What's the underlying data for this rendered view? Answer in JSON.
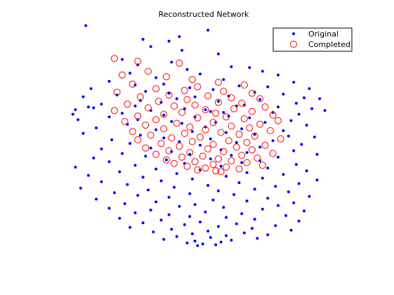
{
  "chart_data": {
    "type": "scatter",
    "title": "Reconstructed Network",
    "xlabel": "",
    "ylabel": "",
    "grid": false,
    "axes_visible": false,
    "legend_placement": "top-right",
    "series": [
      {
        "name": "Original",
        "marker": "dot",
        "color": "#0000ff",
        "points": [
          [
            6,
            35
          ],
          [
            53,
            40
          ],
          [
            42,
            47
          ],
          [
            28,
            50
          ],
          [
            38,
            52
          ],
          [
            31,
            58
          ],
          [
            43,
            62
          ],
          [
            57,
            66
          ],
          [
            20,
            72
          ],
          [
            39,
            75
          ],
          [
            26,
            78
          ],
          [
            62,
            80
          ],
          [
            69,
            81
          ],
          [
            45,
            83
          ],
          [
            74,
            85
          ],
          [
            23,
            87
          ],
          [
            50,
            88
          ],
          [
            80,
            89
          ],
          [
            33,
            92
          ],
          [
            59,
            94
          ],
          [
            15,
            96
          ],
          [
            86,
            97
          ],
          [
            36,
            99
          ],
          [
            25,
            100
          ],
          [
            65,
            101
          ],
          [
            76,
            102
          ],
          [
            46,
            103
          ],
          [
            8,
            104
          ],
          [
            92,
            104
          ],
          [
            55,
            105
          ],
          [
            29,
            107
          ],
          [
            71,
            108
          ],
          [
            38,
            109
          ],
          [
            82,
            110
          ],
          [
            18,
            111
          ],
          [
            61,
            112
          ],
          [
            5,
            113
          ],
          [
            48,
            113
          ],
          [
            90,
            114
          ],
          [
            41,
            115
          ],
          [
            96,
            115
          ],
          [
            73,
            116
          ],
          [
            27,
            117
          ],
          [
            57,
            118
          ],
          [
            35,
            119
          ],
          [
            87,
            120
          ],
          [
            12,
            121
          ],
          [
            67,
            122
          ],
          [
            25,
            123
          ],
          [
            64,
            123
          ],
          [
            7,
            124
          ],
          [
            80,
            124
          ],
          [
            9,
            125
          ],
          [
            44,
            126
          ],
          [
            93,
            126
          ],
          [
            2,
            127
          ],
          [
            52,
            127
          ],
          [
            98,
            128
          ],
          [
            31,
            128
          ],
          [
            54,
            129
          ],
          [
            59,
            130
          ],
          [
            78,
            130
          ],
          [
            20,
            131
          ],
          [
            1,
            132
          ],
          [
            88,
            132
          ],
          [
            36,
            133
          ],
          [
            61,
            134
          ],
          [
            48,
            135
          ],
          [
            15,
            135
          ],
          [
            69,
            136
          ],
          [
            3,
            138
          ],
          [
            26,
            138
          ],
          [
            85,
            139
          ],
          [
            39,
            140
          ],
          [
            56,
            141
          ],
          [
            75,
            141
          ],
          [
            43,
            142
          ],
          [
            22,
            143
          ],
          [
            91,
            144
          ],
          [
            52,
            146
          ],
          [
            10,
            147
          ],
          [
            66,
            148
          ],
          [
            33,
            149
          ],
          [
            82,
            150
          ],
          [
            47,
            151
          ],
          [
            60,
            152
          ],
          [
            5,
            153
          ],
          [
            71,
            154
          ],
          [
            27,
            155
          ],
          [
            84,
            156
          ],
          [
            94,
            157
          ],
          [
            36,
            158
          ],
          [
            54,
            159
          ],
          [
            16,
            160
          ],
          [
            78,
            161
          ],
          [
            42,
            162
          ],
          [
            64,
            163
          ],
          [
            23,
            164
          ],
          [
            89,
            165
          ],
          [
            50,
            166
          ],
          [
            73,
            168
          ],
          [
            31,
            169
          ],
          [
            12,
            170
          ],
          [
            58,
            171
          ],
          [
            86,
            172
          ],
          [
            39,
            173
          ],
          [
            68,
            174
          ],
          [
            20,
            175
          ],
          [
            46,
            176
          ],
          [
            95,
            176
          ],
          [
            62,
            177
          ],
          [
            29,
            178
          ],
          [
            80,
            179
          ],
          [
            9,
            180
          ],
          [
            54,
            181
          ],
          [
            37,
            182
          ],
          [
            73,
            183
          ],
          [
            15,
            184
          ],
          [
            66,
            185
          ],
          [
            44,
            186
          ],
          [
            87,
            187
          ],
          [
            25,
            188
          ],
          [
            58,
            189
          ],
          [
            2,
            190
          ],
          [
            76,
            191
          ],
          [
            33,
            192
          ],
          [
            50,
            193
          ],
          [
            91,
            194
          ],
          [
            19,
            195
          ],
          [
            68,
            196
          ],
          [
            41,
            197
          ],
          [
            82,
            198
          ],
          [
            7,
            199
          ],
          [
            60,
            200
          ],
          [
            28,
            201
          ],
          [
            74,
            202
          ],
          [
            47,
            203
          ],
          [
            95,
            204
          ],
          [
            35,
            205
          ],
          [
            12,
            206
          ],
          [
            65,
            207
          ],
          [
            88,
            208
          ],
          [
            22,
            209
          ],
          [
            53,
            210
          ],
          [
            79,
            211
          ],
          [
            40,
            212
          ],
          [
            4,
            213
          ],
          [
            71,
            214
          ],
          [
            30,
            215
          ],
          [
            57,
            216
          ],
          [
            84,
            217
          ],
          [
            17,
            218
          ],
          [
            46,
            219
          ],
          [
            63,
            220
          ],
          [
            26,
            221
          ],
          [
            92,
            222
          ],
          [
            38,
            223
          ],
          [
            76,
            224
          ],
          [
            10,
            225
          ],
          [
            55,
            226
          ],
          [
            68,
            227
          ],
          [
            33,
            228
          ],
          [
            86,
            229
          ],
          [
            21,
            230
          ],
          [
            48,
            231
          ],
          [
            80,
            232
          ],
          [
            42,
            233
          ],
          [
            59,
            234
          ],
          [
            15,
            235
          ],
          [
            74,
            236
          ],
          [
            31,
            237
          ],
          [
            90,
            238
          ],
          [
            52,
            239
          ],
          [
            25,
            240
          ],
          [
            66,
            241
          ],
          [
            38,
            242
          ],
          [
            83,
            243
          ],
          [
            46,
            244
          ],
          [
            60,
            245
          ],
          [
            19,
            246
          ],
          [
            71,
            247
          ],
          [
            35,
            248
          ],
          [
            88,
            249
          ],
          [
            50,
            250
          ],
          [
            28,
            251
          ],
          [
            64,
            252
          ],
          [
            44,
            253
          ],
          [
            79,
            254
          ],
          [
            57,
            255
          ],
          [
            23,
            256
          ],
          [
            70,
            257
          ],
          [
            39,
            258
          ],
          [
            85,
            259
          ],
          [
            53,
            260
          ],
          [
            32,
            261
          ],
          [
            67,
            262
          ],
          [
            47,
            263
          ],
          [
            76,
            264
          ],
          [
            60,
            265
          ],
          [
            41,
            266
          ],
          [
            54,
            267
          ],
          [
            72,
            268
          ],
          [
            36,
            269
          ],
          [
            62,
            270
          ],
          [
            48,
            271
          ],
          [
            58,
            272
          ],
          [
            45,
            273
          ],
          [
            51,
            274
          ],
          [
            56,
            275
          ],
          [
            49,
            276
          ]
        ]
      },
      {
        "name": "Completed",
        "marker": "circle",
        "color": "#ff0000",
        "points": [
          [
            17,
            71
          ],
          [
            26,
            74
          ],
          [
            42,
            76
          ],
          [
            30,
            85
          ],
          [
            20,
            89
          ],
          [
            37,
            91
          ],
          [
            47,
            94
          ],
          [
            57,
            97
          ],
          [
            24,
            99
          ],
          [
            67,
            100
          ],
          [
            49,
            102
          ],
          [
            33,
            104
          ],
          [
            44,
            106
          ],
          [
            59,
            107
          ],
          [
            18,
            108
          ],
          [
            70,
            109
          ],
          [
            38,
            111
          ],
          [
            53,
            112
          ],
          [
            27,
            113
          ],
          [
            62,
            114
          ],
          [
            73,
            115
          ],
          [
            45,
            116
          ],
          [
            34,
            118
          ],
          [
            57,
            119
          ],
          [
            66,
            120
          ],
          [
            22,
            121
          ],
          [
            48,
            122
          ],
          [
            40,
            123
          ],
          [
            75,
            124
          ],
          [
            30,
            125
          ],
          [
            63,
            126
          ],
          [
            52,
            127
          ],
          [
            17,
            128
          ],
          [
            70,
            129
          ],
          [
            43,
            130
          ],
          [
            56,
            131
          ],
          [
            36,
            132
          ],
          [
            78,
            133
          ],
          [
            26,
            134
          ],
          [
            60,
            135
          ],
          [
            49,
            136
          ],
          [
            67,
            137
          ],
          [
            33,
            138
          ],
          [
            80,
            139
          ],
          [
            21,
            140
          ],
          [
            55,
            141
          ],
          [
            41,
            142
          ],
          [
            73,
            143
          ],
          [
            29,
            144
          ],
          [
            62,
            145
          ],
          [
            46,
            146
          ],
          [
            69,
            147
          ],
          [
            36,
            148
          ],
          [
            52,
            149
          ],
          [
            77,
            150
          ],
          [
            24,
            151
          ],
          [
            58,
            152
          ],
          [
            44,
            153
          ],
          [
            65,
            154
          ],
          [
            31,
            155
          ],
          [
            71,
            156
          ],
          [
            50,
            157
          ],
          [
            39,
            158
          ],
          [
            81,
            159
          ],
          [
            26,
            160
          ],
          [
            61,
            161
          ],
          [
            47,
            162
          ],
          [
            68,
            163
          ],
          [
            35,
            164
          ],
          [
            55,
            165
          ],
          [
            75,
            166
          ],
          [
            42,
            167
          ],
          [
            64,
            168
          ],
          [
            29,
            169
          ],
          [
            53,
            170
          ],
          [
            70,
            171
          ],
          [
            38,
            172
          ],
          [
            59,
            173
          ],
          [
            46,
            174
          ],
          [
            78,
            175
          ],
          [
            33,
            176
          ],
          [
            66,
            177
          ],
          [
            51,
            178
          ],
          [
            43,
            179
          ],
          [
            72,
            180
          ],
          [
            57,
            181
          ],
          [
            37,
            182
          ],
          [
            62,
            183
          ],
          [
            48,
            184
          ],
          [
            68,
            185
          ],
          [
            40,
            186
          ],
          [
            55,
            187
          ],
          [
            74,
            188
          ],
          [
            45,
            189
          ],
          [
            60,
            190
          ],
          [
            52,
            191
          ],
          [
            65,
            192
          ],
          [
            49,
            193
          ],
          [
            56,
            194
          ],
          [
            58,
            195
          ]
        ]
      }
    ],
    "xlim": [
      0,
      100
    ],
    "ylim": [
      30,
      280
    ]
  }
}
